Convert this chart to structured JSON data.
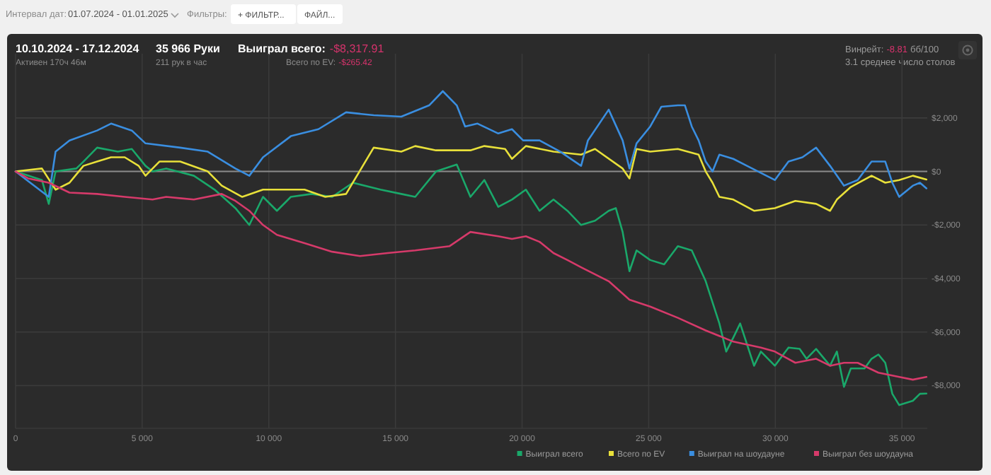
{
  "chart_data": {
    "type": "line",
    "title": "10.10.2024 - 17.12.2024",
    "annotations": [
      "Интервал дат:",
      "01.07.2024 - 01.01.2025",
      "Фильтры:",
      "+ ФИЛЬТР...",
      "ФАЙЛ...",
      "Активен 170ч 46м",
      "35 966 Руки",
      "211 рук в час",
      "Выиграл всего:",
      "-$8,317.91",
      "Всего по EV:",
      "-$265.42",
      "Винрейт:",
      "-8.81",
      "бб/100",
      "3.1 среднее число столов"
    ],
    "xlim": [
      0,
      36000
    ],
    "xticks": [
      0,
      {
        "value": 5000,
        "label": "5 000"
      },
      {
        "value": 10000,
        "label": "10 000"
      },
      {
        "value": 15000,
        "label": "15 000"
      },
      {
        "value": 20000,
        "label": "20 000"
      },
      {
        "value": 25000,
        "label": "25 000"
      },
      {
        "value": 30000,
        "label": "30 000"
      },
      {
        "value": 35000,
        "label": "35 000"
      }
    ],
    "ylim": [
      -9600,
      4400
    ],
    "yticks": [
      {
        "value": 2000,
        "label": "$2,000"
      },
      {
        "value": 0,
        "label": "$0"
      },
      {
        "value": -2000,
        "label": "-$2,000"
      },
      {
        "value": -4000,
        "label": "-$4,000"
      },
      {
        "value": -6000,
        "label": "-$6,000"
      },
      {
        "value": -8000,
        "label": "-$8,000"
      }
    ],
    "grid": true,
    "legend": "bottom right",
    "ref_lines": [
      {
        "axis": "y",
        "value": 0,
        "color": "#8a8a8a"
      }
    ],
    "series": [
      {
        "name": "Выиграл всего",
        "color": "#1aa86a",
        "x": [
          0,
          1040,
          1310,
          1580,
          2400,
          2680,
          3220,
          4040,
          4590,
          5130,
          5410,
          5950,
          7040,
          7860,
          8680,
          9230,
          9770,
          10320,
          10870,
          11680,
          12500,
          13320,
          14410,
          15230,
          15780,
          16600,
          17420,
          17960,
          18510,
          19060,
          19600,
          20150,
          20690,
          21240,
          21790,
          22330,
          22880,
          23420,
          23700,
          23970,
          24240,
          24520,
          25060,
          25610,
          26150,
          26700,
          27250,
          27790,
          28060,
          28340,
          28610,
          29160,
          29430,
          29980,
          30520,
          30960,
          31230,
          31610,
          32160,
          32430,
          32710,
          32980,
          33520,
          33800,
          34070,
          34340,
          34620,
          34890,
          35430,
          35710,
          35966
        ],
        "values": [
          0,
          -320,
          -1210,
          0,
          110,
          370,
          890,
          740,
          840,
          210,
          0,
          110,
          -160,
          -680,
          -1370,
          -2000,
          -950,
          -1470,
          -950,
          -840,
          -950,
          -420,
          -680,
          -840,
          -950,
          0,
          260,
          -950,
          -320,
          -1320,
          -1050,
          -680,
          -1470,
          -1050,
          -1470,
          -2000,
          -1840,
          -1470,
          -1370,
          -2260,
          -3730,
          -2950,
          -3310,
          -3470,
          -2790,
          -2950,
          -4100,
          -5680,
          -6730,
          -6210,
          -5680,
          -7260,
          -6730,
          -7260,
          -6580,
          -6630,
          -7000,
          -6630,
          -7260,
          -6730,
          -8050,
          -7360,
          -7360,
          -7000,
          -6840,
          -7150,
          -8310,
          -8730,
          -8570,
          -8310,
          -8300
        ]
      },
      {
        "name": "Всего по EV",
        "color": "#e8e03a",
        "x": [
          0,
          1040,
          1580,
          2130,
          2680,
          3220,
          3770,
          4310,
          4860,
          5130,
          5680,
          6500,
          7590,
          8140,
          8950,
          9770,
          10590,
          11410,
          12230,
          13050,
          14140,
          15230,
          15780,
          16600,
          17960,
          18510,
          19330,
          19600,
          20150,
          21240,
          22330,
          22880,
          23970,
          24240,
          24520,
          25060,
          26150,
          26970,
          27250,
          27520,
          27790,
          28340,
          29160,
          29980,
          30790,
          31610,
          32160,
          32430,
          32980,
          33800,
          34340,
          34890,
          35430,
          35966
        ],
        "values": [
          0,
          110,
          -680,
          -420,
          210,
          370,
          530,
          530,
          210,
          -160,
          370,
          370,
          0,
          -530,
          -950,
          -680,
          -680,
          -680,
          -950,
          -840,
          890,
          740,
          950,
          790,
          790,
          950,
          840,
          470,
          950,
          740,
          630,
          840,
          110,
          -260,
          840,
          740,
          840,
          630,
          0,
          -420,
          -950,
          -1050,
          -1470,
          -1370,
          -1100,
          -1210,
          -1470,
          -1050,
          -580,
          -160,
          -420,
          -320,
          -160,
          -300
        ]
      },
      {
        "name": "Выиграл на шоудауне",
        "color": "#3a8ee0",
        "x": [
          0,
          1310,
          1580,
          2130,
          3220,
          3770,
          4590,
          5130,
          6500,
          7590,
          8680,
          9230,
          9770,
          10870,
          11960,
          13050,
          14140,
          15230,
          16330,
          16870,
          17420,
          17750,
          18240,
          19060,
          19600,
          20040,
          20690,
          21510,
          22330,
          22600,
          23420,
          23970,
          24240,
          24520,
          25060,
          25500,
          26150,
          26430,
          26700,
          26970,
          27250,
          27520,
          27790,
          28340,
          28880,
          29980,
          30520,
          31070,
          31610,
          32160,
          32710,
          33250,
          33800,
          34340,
          34620,
          34890,
          35430,
          35710,
          35966
        ],
        "values": [
          0,
          -950,
          740,
          1160,
          1530,
          1790,
          1530,
          1050,
          890,
          740,
          110,
          -160,
          530,
          1320,
          1580,
          2210,
          2100,
          2050,
          2470,
          3000,
          2470,
          1680,
          1790,
          1420,
          1580,
          1160,
          1160,
          740,
          210,
          1160,
          2310,
          1160,
          110,
          1050,
          1680,
          2420,
          2470,
          2470,
          1680,
          1160,
          370,
          0,
          630,
          470,
          210,
          -320,
          370,
          530,
          890,
          210,
          -530,
          -320,
          370,
          370,
          -420,
          -950,
          -530,
          -420,
          -630
        ]
      },
      {
        "name": "Выиграл без шоудауна",
        "color": "#d63a6a",
        "x": [
          0,
          500,
          1310,
          2130,
          3220,
          4310,
          5410,
          5950,
          7040,
          8140,
          8680,
          9230,
          9770,
          10320,
          11410,
          12500,
          13600,
          14690,
          15780,
          17140,
          17960,
          19060,
          19600,
          20150,
          20690,
          21240,
          21790,
          22330,
          23420,
          24240,
          25060,
          26150,
          27250,
          28340,
          29430,
          29980,
          30790,
          31610,
          32160,
          32710,
          33250,
          34070,
          34890,
          35430,
          35966
        ],
        "values": [
          0,
          -260,
          -420,
          -790,
          -840,
          -950,
          -1050,
          -950,
          -1050,
          -840,
          -1100,
          -1470,
          -2000,
          -2370,
          -2680,
          -3000,
          -3160,
          -3050,
          -2950,
          -2790,
          -2260,
          -2420,
          -2520,
          -2420,
          -2630,
          -3050,
          -3310,
          -3580,
          -4100,
          -4790,
          -5050,
          -5470,
          -5940,
          -6360,
          -6580,
          -6730,
          -7150,
          -7000,
          -7260,
          -7150,
          -7150,
          -7520,
          -7680,
          -7780,
          -7680
        ]
      }
    ]
  }
}
